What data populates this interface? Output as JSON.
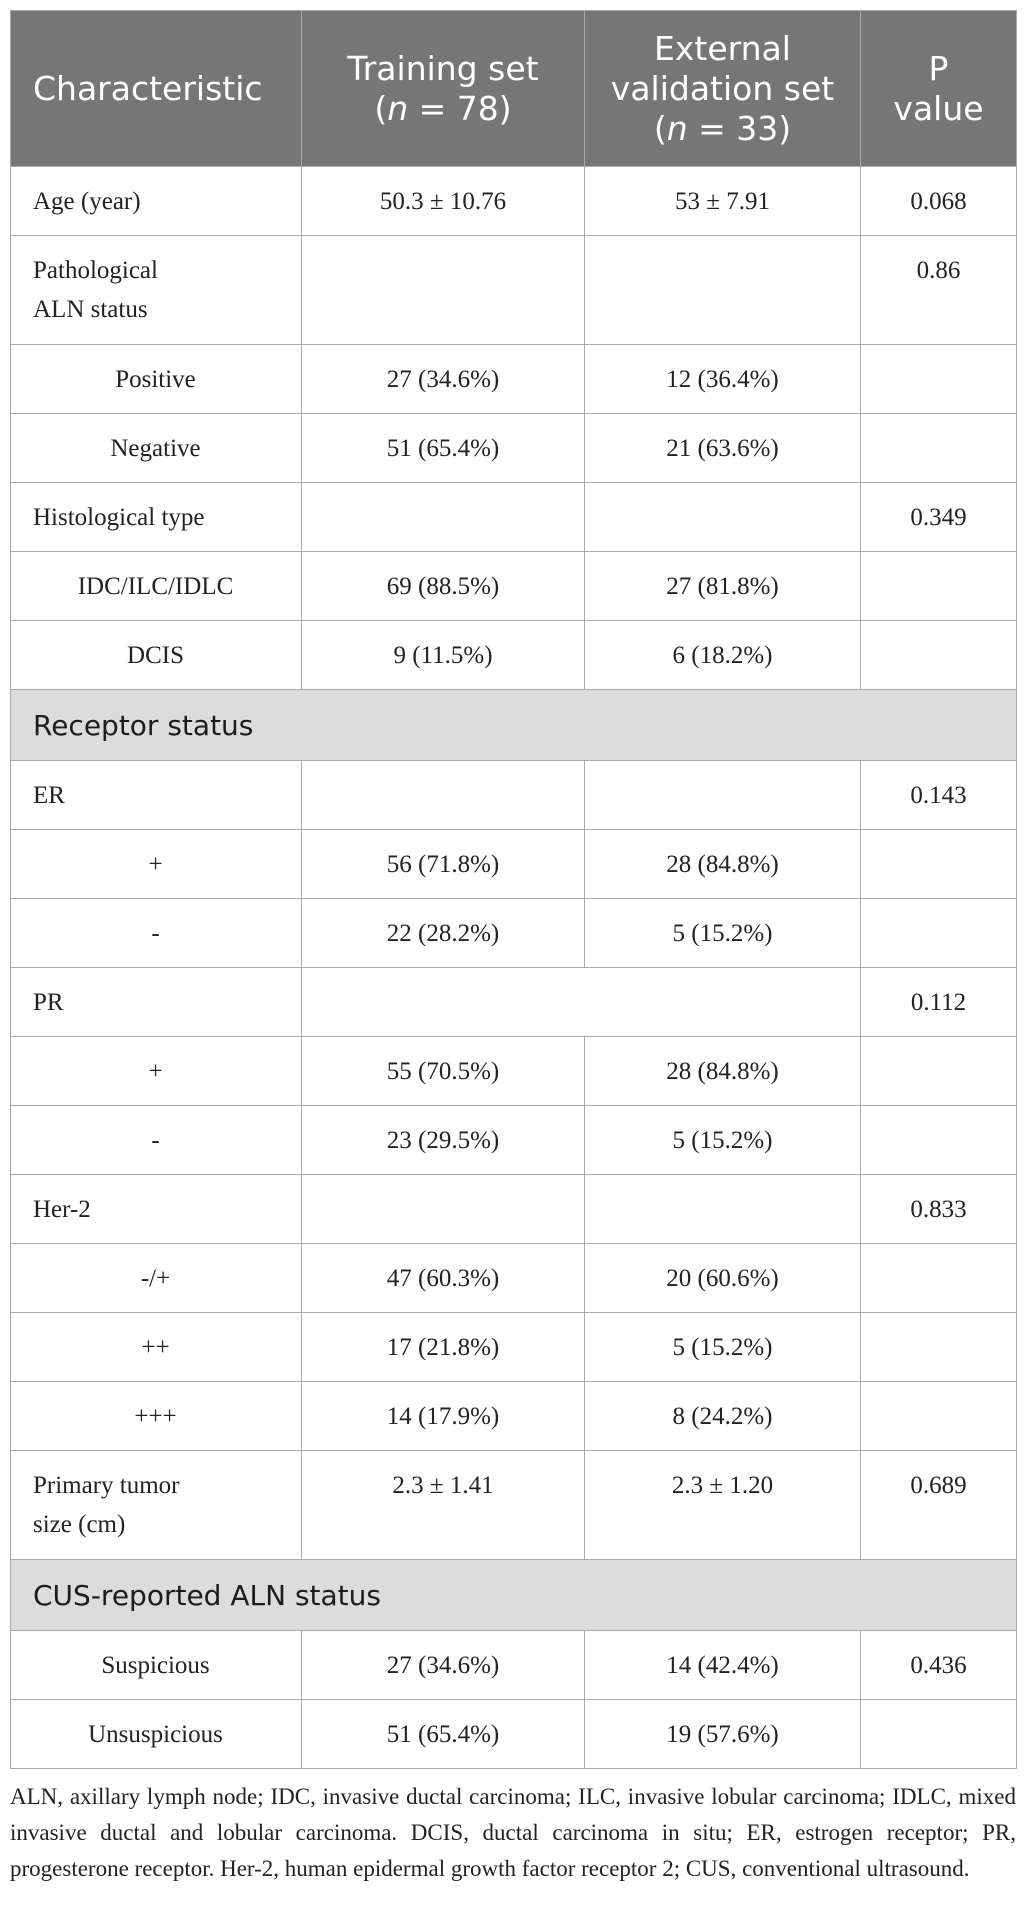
{
  "header": {
    "characteristic": "Characteristic",
    "training_line1": "Training set",
    "training_n_open": "(",
    "training_n_italic": "n",
    "training_n_rest": " = 78)",
    "external_line1": "External",
    "external_line2": "validation set",
    "external_n_open": "(",
    "external_n_italic": "n",
    "external_n_rest": " = 33)",
    "p_line1": "P",
    "p_line2": "value"
  },
  "rows": [
    {
      "label": "Age (year)",
      "training": "50.3 ± 10.76",
      "external": "53 ± 7.91",
      "p": "0.068"
    },
    {
      "label_line1": "Pathological",
      "label_line2": "ALN status",
      "training": "",
      "external": "",
      "p": "0.86"
    },
    {
      "label": "Positive",
      "training": "27 (34.6%)",
      "external": "12 (36.4%)",
      "p": ""
    },
    {
      "label": "Negative",
      "training": "51 (65.4%)",
      "external": "21 (63.6%)",
      "p": ""
    },
    {
      "label": "Histological type",
      "training": "",
      "external": "",
      "p": "0.349"
    },
    {
      "label": "IDC/ILC/IDLC",
      "training": "69 (88.5%)",
      "external": "27 (81.8%)",
      "p": ""
    },
    {
      "label": "DCIS",
      "training": "9 (11.5%)",
      "external": "6 (18.2%)",
      "p": ""
    },
    {
      "section": "Receptor status"
    },
    {
      "label": "ER",
      "training": "",
      "external": "",
      "p": "0.143"
    },
    {
      "label": "+",
      "training": "56 (71.8%)",
      "external": "28 (84.8%)",
      "p": ""
    },
    {
      "label": "-",
      "training": "22 (28.2%)",
      "external": "5 (15.2%)",
      "p": ""
    },
    {
      "label": "PR",
      "merged": "",
      "p": "0.112"
    },
    {
      "label": "+",
      "training": "55 (70.5%)",
      "external": "28 (84.8%)",
      "p": ""
    },
    {
      "label": "-",
      "training": "23 (29.5%)",
      "external": "5 (15.2%)",
      "p": ""
    },
    {
      "label": "Her-2",
      "training": "",
      "external": "",
      "p": "0.833"
    },
    {
      "label": "-/+",
      "training": "47 (60.3%)",
      "external": "20 (60.6%)",
      "p": ""
    },
    {
      "label": "++",
      "training": "17 (21.8%)",
      "external": "5 (15.2%)",
      "p": ""
    },
    {
      "label": "+++",
      "training": "14 (17.9%)",
      "external": "8 (24.2%)",
      "p": ""
    },
    {
      "label_line1": "Primary tumor",
      "label_line2": "size (cm)",
      "training": "2.3 ± 1.41",
      "external": "2.3 ± 1.20",
      "p": "0.689"
    },
    {
      "section": "CUS-reported ALN status"
    },
    {
      "label": "Suspicious",
      "training": "27 (34.6%)",
      "external": "14 (42.4%)",
      "p": "0.436"
    },
    {
      "label": "Unsuspicious",
      "training": "51 (65.4%)",
      "external": "19 (57.6%)",
      "p": ""
    }
  ],
  "footnote": "ALN, axillary lymph node; IDC, invasive ductal carcinoma; ILC, invasive lobular carcinoma; IDLC, mixed invasive ductal and lobular carcinoma. DCIS, ductal carcinoma in situ; ER, estrogen receptor; PR, progesterone receptor. Her-2, human epidermal growth factor receptor 2; CUS, conventional ultrasound.",
  "colors": {
    "header_bg": "#767676",
    "section_bg": "#dcdcdc",
    "border": "#a9a9a9"
  }
}
